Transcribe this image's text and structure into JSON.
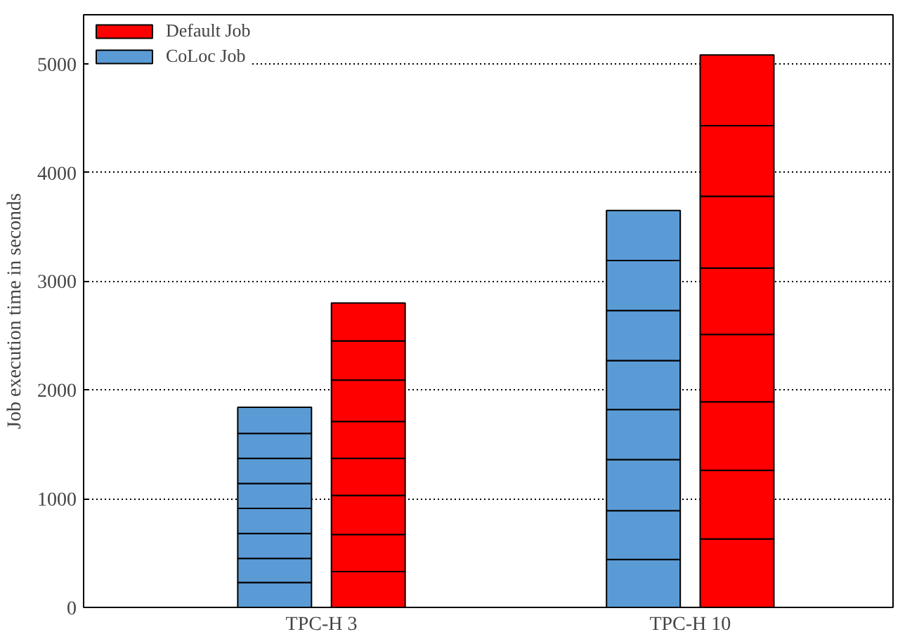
{
  "chart_data": {
    "type": "bar",
    "ylabel": "Job execution time in seconds",
    "categories": [
      "TPC-H 3",
      "TPC-H 10"
    ],
    "series": [
      {
        "name": "CoLoc Job",
        "color": "#5b9bd5",
        "values": [
          230,
          440
        ],
        "base": [
          0,
          0
        ]
      },
      {
        "color": "#5b9bd5",
        "values": [
          220,
          450
        ],
        "base": [
          230,
          440
        ]
      },
      {
        "color": "#5b9bd5",
        "values": [
          230,
          470
        ],
        "base": [
          450,
          890
        ]
      },
      {
        "color": "#5b9bd5",
        "values": [
          230,
          460
        ],
        "base": [
          680,
          1360
        ]
      },
      {
        "color": "#5b9bd5",
        "values": [
          230,
          450
        ],
        "base": [
          910,
          1820
        ]
      },
      {
        "color": "#5b9bd5",
        "values": [
          230,
          460
        ],
        "base": [
          1140,
          2270
        ]
      },
      {
        "color": "#5b9bd5",
        "values": [
          230,
          460
        ],
        "base": [
          1370,
          2730
        ]
      },
      {
        "color": "#5b9bd5",
        "values": [
          240,
          460
        ],
        "base": [
          1600,
          3190
        ]
      },
      {
        "name": "Default Job",
        "color": "#ff0000",
        "values": [
          330,
          630
        ],
        "base": [
          0,
          0
        ]
      },
      {
        "color": "#ff0000",
        "values": [
          340,
          630
        ],
        "base": [
          330,
          630
        ]
      },
      {
        "color": "#ff0000",
        "values": [
          360,
          630
        ],
        "base": [
          670,
          1260
        ]
      },
      {
        "color": "#ff0000",
        "values": [
          340,
          620
        ],
        "base": [
          1030,
          1890
        ]
      },
      {
        "color": "#ff0000",
        "values": [
          340,
          610
        ],
        "base": [
          1370,
          2510
        ]
      },
      {
        "color": "#ff0000",
        "values": [
          380,
          660
        ],
        "base": [
          1710,
          3120
        ]
      },
      {
        "color": "#ff0000",
        "values": [
          360,
          650
        ],
        "base": [
          2090,
          3780
        ]
      },
      {
        "color": "#ff0000",
        "values": [
          350,
          650
        ],
        "base": [
          2450,
          4430
        ]
      }
    ],
    "ylim": [
      0,
      5450
    ],
    "yticks": [
      0,
      1000,
      2000,
      3000,
      4000,
      5000
    ],
    "grid": "y",
    "legend": "top left"
  }
}
